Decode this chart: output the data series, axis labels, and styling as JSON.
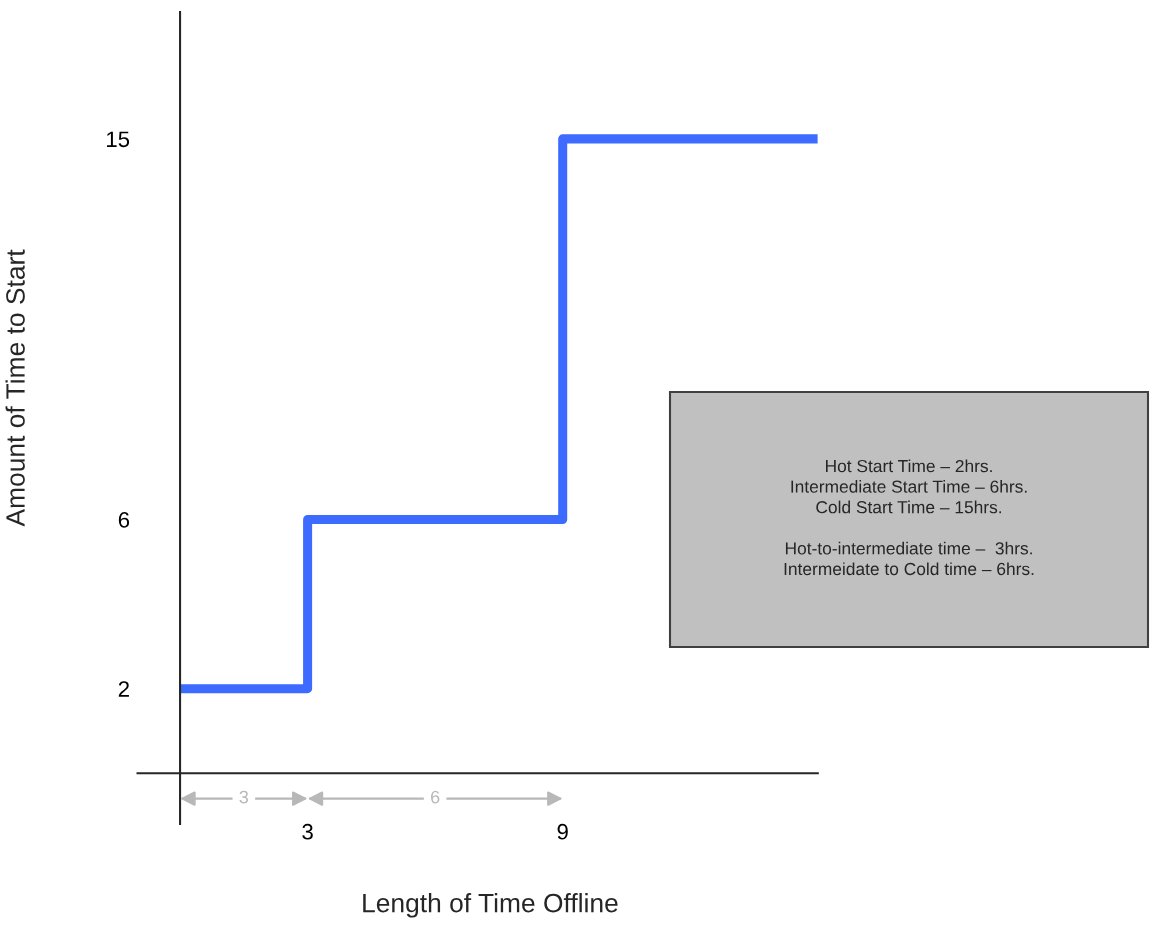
{
  "chart_data": {
    "type": "step",
    "xlabel": "Length of Time Offline",
    "ylabel": "Amount of Time to Start",
    "x": [
      0,
      3,
      9,
      15
    ],
    "series": [
      {
        "color": "#3d6bff",
        "values": [
          2,
          6,
          15,
          15
        ]
      }
    ],
    "xlim": [
      -1,
      15
    ],
    "ylim": [
      -1.2,
      18
    ],
    "xticks": [
      3,
      9
    ],
    "yticks": [
      2,
      6,
      15
    ],
    "grid": false,
    "marker": "none",
    "line_style": "solid",
    "annotations": [
      {
        "text": "3",
        "x": 1.5,
        "y": -0.6
      },
      {
        "text": "6",
        "x": 6,
        "y": -0.6
      },
      "Hot Start Time – 2hrs.\nIntermediate Start Time – 6hrs.\nCold Start Time – 15hrs.\n\nHot-to-intermediate time –  3hrs.\nIntermeidate to Cold time – 6hrs."
    ]
  }
}
